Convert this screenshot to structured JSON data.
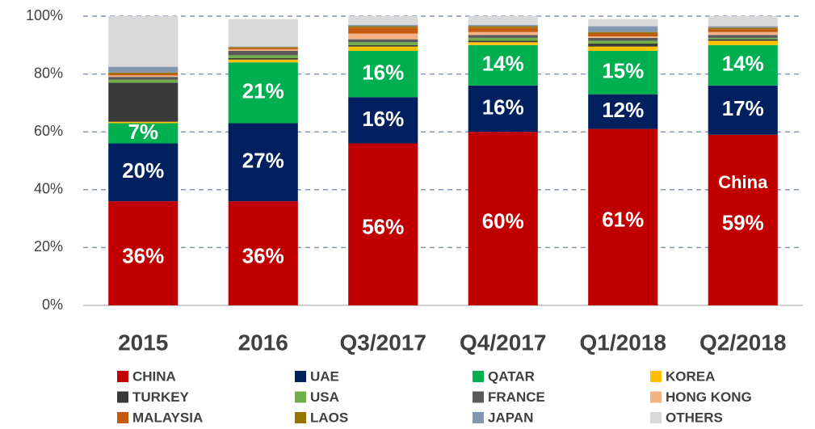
{
  "chart_data": {
    "type": "stacked_bar",
    "categories": [
      "2015",
      "2016",
      "Q3/2017",
      "Q4/2017",
      "Q1/2018",
      "Q2/2018"
    ],
    "ylim": [
      0,
      100
    ],
    "yticks": [
      {
        "value": 0,
        "label": "0%"
      },
      {
        "value": 20,
        "label": "20%"
      },
      {
        "value": 40,
        "label": "40%"
      },
      {
        "value": 60,
        "label": "60%"
      },
      {
        "value": 80,
        "label": "80%"
      },
      {
        "value": 100,
        "label": "100%"
      }
    ],
    "grid": true,
    "annotation": "China",
    "series": [
      {
        "name": "CHINA",
        "color": "#c00000",
        "values": [
          36,
          36,
          56,
          60,
          61,
          59
        ],
        "value_labels": [
          "36%",
          "36%",
          "56%",
          "60%",
          "61%",
          "59%"
        ]
      },
      {
        "name": "UAE",
        "color": "#002060",
        "values": [
          20,
          27,
          16,
          16,
          12,
          17
        ],
        "value_labels": [
          "20%",
          "27%",
          "16%",
          "16%",
          "12%",
          "17%"
        ]
      },
      {
        "name": "QATAR",
        "color": "#00b050",
        "values": [
          7,
          21,
          16,
          14,
          15,
          14
        ],
        "value_labels": [
          "7%",
          "21%",
          "16%",
          "14%",
          "15%",
          "14%"
        ]
      },
      {
        "name": "KOREA",
        "color": "#ffc000",
        "values": [
          0.5,
          1,
          1.5,
          1,
          1.5,
          1.5
        ]
      },
      {
        "name": "TURKEY",
        "color": "#3a3a3a",
        "values": [
          13.5,
          0.5,
          0.5,
          0.5,
          1,
          0.5
        ]
      },
      {
        "name": "USA",
        "color": "#70ad47",
        "values": [
          1,
          1,
          1,
          1,
          1,
          0.5
        ]
      },
      {
        "name": "FRANCE",
        "color": "#595959",
        "values": [
          1,
          1.5,
          1,
          1,
          1,
          1
        ]
      },
      {
        "name": "HONG KONG",
        "color": "#f4b183",
        "values": [
          0.5,
          0.5,
          2,
          1,
          0.5,
          1
        ]
      },
      {
        "name": "MALAYSIA",
        "color": "#c55a11",
        "values": [
          0.5,
          0.5,
          2,
          1.5,
          1,
          1
        ]
      },
      {
        "name": "LAOS",
        "color": "#997300",
        "values": [
          0.5,
          0.3,
          0.5,
          0.5,
          0.5,
          0.5
        ]
      },
      {
        "name": "JAPAN",
        "color": "#8497b0",
        "values": [
          2,
          0.2,
          0.5,
          0.5,
          2,
          0.5
        ]
      },
      {
        "name": "OTHERS",
        "color": "#d9d9d9",
        "values": [
          17.5,
          9.5,
          3,
          3,
          2.5,
          3.5
        ]
      }
    ]
  }
}
